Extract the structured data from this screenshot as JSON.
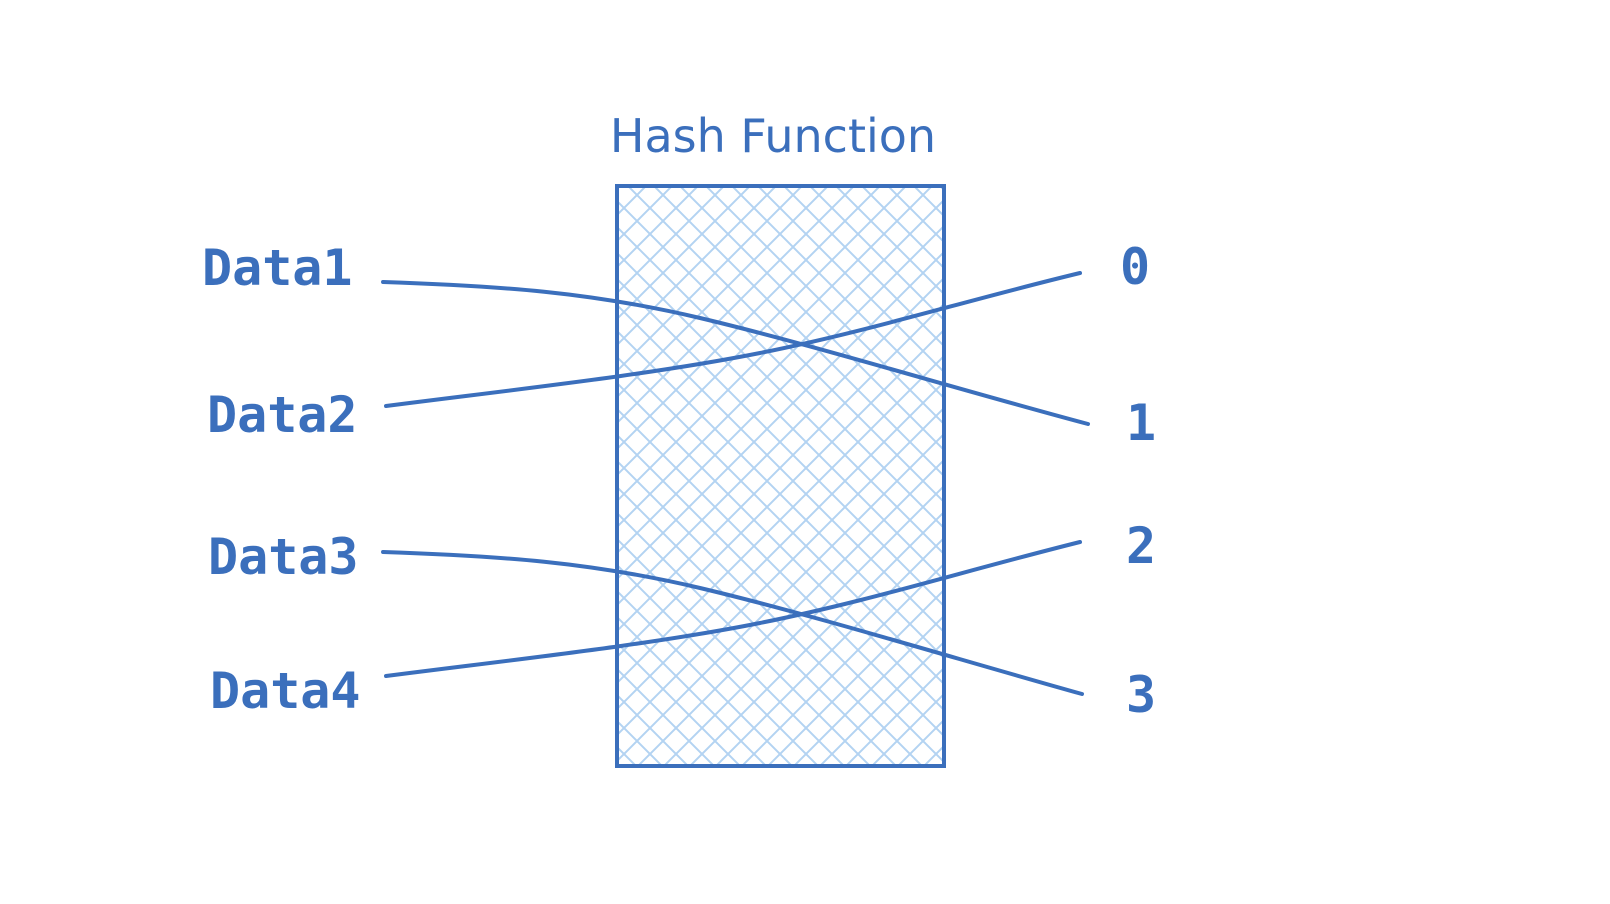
{
  "colors": {
    "stroke": "#3b6fbc",
    "text": "#3b6fbc",
    "hatch": "#b3d3f2",
    "background": "#ffffff"
  },
  "title": "Hash Function",
  "inputs": [
    {
      "label": "Data1",
      "maps_to": "1"
    },
    {
      "label": "Data2",
      "maps_to": "0"
    },
    {
      "label": "Data3",
      "maps_to": "3"
    },
    {
      "label": "Data4",
      "maps_to": "2"
    }
  ],
  "outputs": [
    {
      "label": "0"
    },
    {
      "label": "1"
    },
    {
      "label": "2"
    },
    {
      "label": "3"
    }
  ]
}
